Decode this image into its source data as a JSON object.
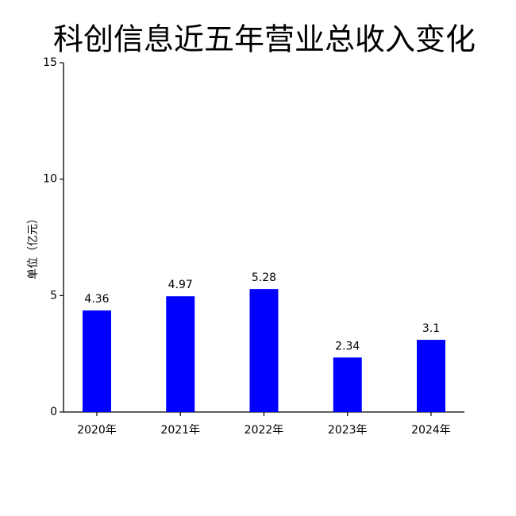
{
  "chart_data": {
    "type": "bar",
    "title": "科创信息近五年营业总收入变化",
    "y_label": "单位（亿元）",
    "categories": [
      "2020年",
      "2021年",
      "2022年",
      "2023年",
      "2024年"
    ],
    "values": [
      4.36,
      4.97,
      5.28,
      2.34,
      3.1
    ],
    "color": "#0000ff",
    "ylim": [
      0,
      15
    ],
    "yticks": [
      0,
      5,
      10,
      15
    ],
    "grid": false
  }
}
